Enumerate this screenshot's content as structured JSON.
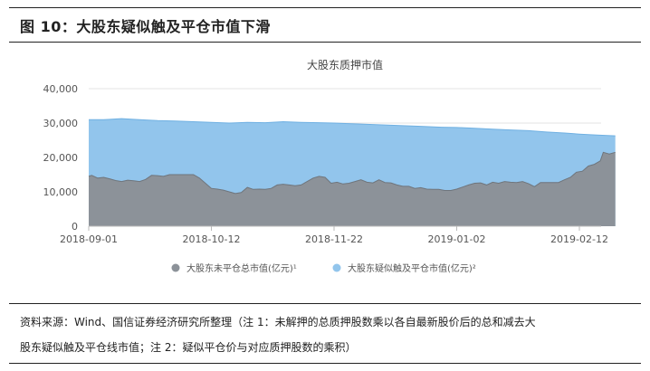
{
  "figure": {
    "title": "图 10：大股东疑似触及平仓市值下滑",
    "source_line1": "资料来源：Wind、国信证券经济研究所整理（注 1：未解押的总质押股数乘以各自最新股价后的总和减去大",
    "source_line2": "股东疑似触及平仓线市值；注 2：疑似平仓价与对应质押股数的乘积）"
  },
  "colors": {
    "series1": "#8c9299",
    "series2": "#92c5ec",
    "grid": "#e3e3e3"
  },
  "chart_data": {
    "type": "area",
    "stacked": false,
    "title": "大股东质押市值",
    "xlabel": "",
    "ylabel": "",
    "ylim": [
      0,
      40000
    ],
    "yticks": [
      "0",
      "10,000",
      "20,000",
      "30,000",
      "40,000"
    ],
    "ytick_values": [
      0,
      10000,
      20000,
      30000,
      40000
    ],
    "xlim": [
      "2018-09-01",
      "2019-02-24"
    ],
    "xticks": [
      "2018-09-01",
      "2018-10-12",
      "2018-11-22",
      "2019-01-02",
      "2019-02-12"
    ],
    "grid": true,
    "legend_position": "bottom",
    "series": [
      {
        "name": "大股东未平仓总市值(亿元)¹",
        "points": [
          [
            "2018-09-01",
            14500
          ],
          [
            "2018-09-02",
            14800
          ],
          [
            "2018-09-04",
            14000
          ],
          [
            "2018-09-06",
            14200
          ],
          [
            "2018-09-08",
            13800
          ],
          [
            "2018-09-10",
            13300
          ],
          [
            "2018-09-12",
            13000
          ],
          [
            "2018-09-14",
            13400
          ],
          [
            "2018-09-16",
            13200
          ],
          [
            "2018-09-18",
            13000
          ],
          [
            "2018-09-20",
            13600
          ],
          [
            "2018-09-22",
            14800
          ],
          [
            "2018-09-24",
            14700
          ],
          [
            "2018-09-26",
            14500
          ],
          [
            "2018-09-28",
            15000
          ],
          [
            "2018-09-30",
            15000
          ],
          [
            "2018-10-02",
            15000
          ],
          [
            "2018-10-04",
            15000
          ],
          [
            "2018-10-06",
            15000
          ],
          [
            "2018-10-08",
            14000
          ],
          [
            "2018-10-10",
            12500
          ],
          [
            "2018-10-12",
            11000
          ],
          [
            "2018-10-14",
            10800
          ],
          [
            "2018-10-16",
            10500
          ],
          [
            "2018-10-18",
            10000
          ],
          [
            "2018-10-20",
            9500
          ],
          [
            "2018-10-22",
            9800
          ],
          [
            "2018-10-24",
            11300
          ],
          [
            "2018-10-26",
            10700
          ],
          [
            "2018-10-28",
            10800
          ],
          [
            "2018-10-30",
            10700
          ],
          [
            "2018-11-01",
            11000
          ],
          [
            "2018-11-03",
            12000
          ],
          [
            "2018-11-05",
            12200
          ],
          [
            "2018-11-07",
            12000
          ],
          [
            "2018-11-09",
            11800
          ],
          [
            "2018-11-11",
            12000
          ],
          [
            "2018-11-13",
            13000
          ],
          [
            "2018-11-15",
            14000
          ],
          [
            "2018-11-17",
            14500
          ],
          [
            "2018-11-19",
            14200
          ],
          [
            "2018-11-21",
            12500
          ],
          [
            "2018-11-23",
            12800
          ],
          [
            "2018-11-25",
            12300
          ],
          [
            "2018-11-27",
            12500
          ],
          [
            "2018-11-29",
            13000
          ],
          [
            "2018-12-01",
            13500
          ],
          [
            "2018-12-03",
            12800
          ],
          [
            "2018-12-05",
            12600
          ],
          [
            "2018-12-07",
            13500
          ],
          [
            "2018-12-09",
            12700
          ],
          [
            "2018-12-11",
            12600
          ],
          [
            "2018-12-13",
            12000
          ],
          [
            "2018-12-15",
            11600
          ],
          [
            "2018-12-17",
            11600
          ],
          [
            "2018-12-19",
            11000
          ],
          [
            "2018-12-21",
            11200
          ],
          [
            "2018-12-23",
            10800
          ],
          [
            "2018-12-25",
            10700
          ],
          [
            "2018-12-27",
            10700
          ],
          [
            "2018-12-29",
            10400
          ],
          [
            "2018-12-31",
            10400
          ],
          [
            "2019-01-02",
            10800
          ],
          [
            "2019-01-04",
            11400
          ],
          [
            "2019-01-06",
            12000
          ],
          [
            "2019-01-08",
            12500
          ],
          [
            "2019-01-10",
            12600
          ],
          [
            "2019-01-12",
            12000
          ],
          [
            "2019-01-14",
            12800
          ],
          [
            "2019-01-16",
            12500
          ],
          [
            "2019-01-18",
            13000
          ],
          [
            "2019-01-20",
            12800
          ],
          [
            "2019-01-22",
            12700
          ],
          [
            "2019-01-24",
            13000
          ],
          [
            "2019-01-26",
            12400
          ],
          [
            "2019-01-28",
            11500
          ],
          [
            "2019-01-30",
            12700
          ],
          [
            "2019-02-01",
            12700
          ],
          [
            "2019-02-03",
            12700
          ],
          [
            "2019-02-05",
            12700
          ],
          [
            "2019-02-07",
            13500
          ],
          [
            "2019-02-09",
            14200
          ],
          [
            "2019-02-11",
            15700
          ],
          [
            "2019-02-13",
            16000
          ],
          [
            "2019-02-15",
            17500
          ],
          [
            "2019-02-17",
            18000
          ],
          [
            "2019-02-19",
            19000
          ],
          [
            "2019-02-20",
            21500
          ],
          [
            "2019-02-22",
            21000
          ],
          [
            "2019-02-24",
            21500
          ]
        ]
      },
      {
        "name": "大股东疑似触及平仓市值(亿元)²",
        "points": [
          [
            "2018-09-01",
            31000
          ],
          [
            "2018-09-06",
            31000
          ],
          [
            "2018-09-12",
            31300
          ],
          [
            "2018-09-18",
            31000
          ],
          [
            "2018-09-24",
            30700
          ],
          [
            "2018-09-30",
            30600
          ],
          [
            "2018-10-06",
            30400
          ],
          [
            "2018-10-12",
            30200
          ],
          [
            "2018-10-18",
            30000
          ],
          [
            "2018-10-24",
            30200
          ],
          [
            "2018-10-30",
            30100
          ],
          [
            "2018-11-05",
            30400
          ],
          [
            "2018-11-11",
            30200
          ],
          [
            "2018-11-17",
            30100
          ],
          [
            "2018-11-22",
            30000
          ],
          [
            "2018-11-28",
            29800
          ],
          [
            "2018-12-04",
            29600
          ],
          [
            "2018-12-10",
            29400
          ],
          [
            "2018-12-16",
            29200
          ],
          [
            "2018-12-22",
            29000
          ],
          [
            "2018-12-28",
            28800
          ],
          [
            "2019-01-02",
            28700
          ],
          [
            "2019-01-08",
            28500
          ],
          [
            "2019-01-14",
            28200
          ],
          [
            "2019-01-20",
            28000
          ],
          [
            "2019-01-26",
            27800
          ],
          [
            "2019-02-01",
            27400
          ],
          [
            "2019-02-07",
            27100
          ],
          [
            "2019-02-12",
            26800
          ],
          [
            "2019-02-18",
            26500
          ],
          [
            "2019-02-24",
            26300
          ]
        ]
      }
    ]
  }
}
